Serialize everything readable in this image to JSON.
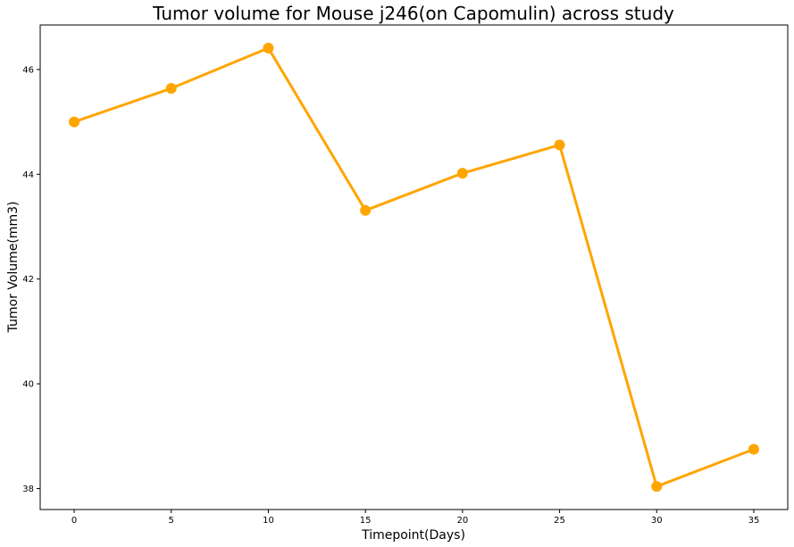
{
  "chart_data": {
    "type": "line",
    "title": "Tumor volume for Mouse j246(on Capomulin) across study",
    "xlabel": "Timepoint(Days)",
    "ylabel": "Tumor Volume(mm3)",
    "x": [
      0,
      5,
      10,
      15,
      20,
      25,
      30,
      35
    ],
    "series": [
      {
        "values": [
          45.0,
          45.64,
          46.41,
          43.31,
          44.02,
          44.56,
          38.04,
          38.75
        ],
        "color": "#ffa500"
      }
    ],
    "xticks": [
      0,
      5,
      10,
      15,
      20,
      25,
      30,
      35
    ],
    "yticks": [
      38,
      40,
      42,
      44,
      46
    ],
    "xlim": [
      -1.75,
      36.75
    ],
    "ylim": [
      37.6,
      46.85
    ],
    "grid": false,
    "marker": "circle"
  }
}
